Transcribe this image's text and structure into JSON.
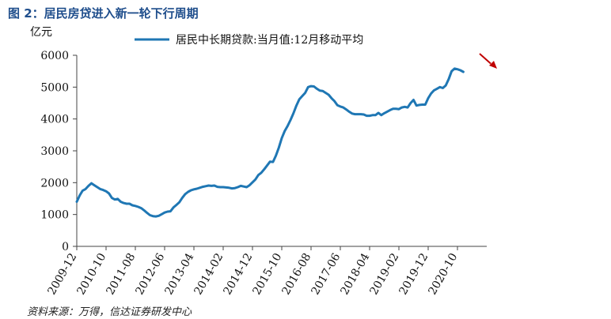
{
  "figure_title": "图 2：居民房贷进入新一轮下行周期",
  "source_note": "资料来源：万得，信达证券研发中心",
  "chart_data": {
    "type": "line",
    "ylabel": "亿元",
    "ylim": [
      0,
      6000
    ],
    "yticks": [
      0,
      1000,
      2000,
      3000,
      4000,
      5000,
      6000
    ],
    "xlim": [
      "2009-12",
      "2021-08"
    ],
    "xticks": [
      "2009-12",
      "2010-10",
      "2011-08",
      "2012-06",
      "2013-04",
      "2014-02",
      "2014-12",
      "2015-10",
      "2016-08",
      "2017-06",
      "2018-04",
      "2019-02",
      "2019-12",
      "2020-10"
    ],
    "legend_position": "top",
    "series": [
      {
        "name": "居民中长期贷款:当月值:12月移动平均",
        "color": "#1f77b4",
        "points": [
          [
            "2009-12",
            1400
          ],
          [
            "2010-01",
            1600
          ],
          [
            "2010-02",
            1750
          ],
          [
            "2010-03",
            1800
          ],
          [
            "2010-04",
            1900
          ],
          [
            "2010-05",
            1980
          ],
          [
            "2010-06",
            1920
          ],
          [
            "2010-07",
            1860
          ],
          [
            "2010-08",
            1800
          ],
          [
            "2010-09",
            1770
          ],
          [
            "2010-10",
            1730
          ],
          [
            "2010-11",
            1660
          ],
          [
            "2010-12",
            1520
          ],
          [
            "2011-01",
            1470
          ],
          [
            "2011-02",
            1490
          ],
          [
            "2011-03",
            1400
          ],
          [
            "2011-04",
            1360
          ],
          [
            "2011-05",
            1340
          ],
          [
            "2011-06",
            1340
          ],
          [
            "2011-07",
            1290
          ],
          [
            "2011-08",
            1270
          ],
          [
            "2011-09",
            1240
          ],
          [
            "2011-10",
            1200
          ],
          [
            "2011-11",
            1130
          ],
          [
            "2011-12",
            1050
          ],
          [
            "2012-01",
            980
          ],
          [
            "2012-02",
            950
          ],
          [
            "2012-03",
            940
          ],
          [
            "2012-04",
            960
          ],
          [
            "2012-05",
            1010
          ],
          [
            "2012-06",
            1060
          ],
          [
            "2012-07",
            1090
          ],
          [
            "2012-08",
            1100
          ],
          [
            "2012-09",
            1220
          ],
          [
            "2012-10",
            1300
          ],
          [
            "2012-11",
            1380
          ],
          [
            "2012-12",
            1520
          ],
          [
            "2013-01",
            1640
          ],
          [
            "2013-02",
            1710
          ],
          [
            "2013-03",
            1760
          ],
          [
            "2013-04",
            1790
          ],
          [
            "2013-05",
            1810
          ],
          [
            "2013-06",
            1840
          ],
          [
            "2013-07",
            1870
          ],
          [
            "2013-08",
            1890
          ],
          [
            "2013-09",
            1910
          ],
          [
            "2013-10",
            1900
          ],
          [
            "2013-11",
            1910
          ],
          [
            "2013-12",
            1870
          ],
          [
            "2014-01",
            1860
          ],
          [
            "2014-02",
            1860
          ],
          [
            "2014-03",
            1850
          ],
          [
            "2014-04",
            1840
          ],
          [
            "2014-05",
            1820
          ],
          [
            "2014-06",
            1830
          ],
          [
            "2014-07",
            1860
          ],
          [
            "2014-08",
            1900
          ],
          [
            "2014-09",
            1880
          ],
          [
            "2014-10",
            1860
          ],
          [
            "2014-11",
            1920
          ],
          [
            "2014-12",
            2010
          ],
          [
            "2015-01",
            2100
          ],
          [
            "2015-02",
            2240
          ],
          [
            "2015-03",
            2310
          ],
          [
            "2015-04",
            2420
          ],
          [
            "2015-05",
            2540
          ],
          [
            "2015-06",
            2660
          ],
          [
            "2015-07",
            2650
          ],
          [
            "2015-08",
            2850
          ],
          [
            "2015-09",
            3100
          ],
          [
            "2015-10",
            3400
          ],
          [
            "2015-11",
            3620
          ],
          [
            "2015-12",
            3780
          ],
          [
            "2016-01",
            3970
          ],
          [
            "2016-02",
            4180
          ],
          [
            "2016-03",
            4420
          ],
          [
            "2016-04",
            4620
          ],
          [
            "2016-05",
            4720
          ],
          [
            "2016-06",
            4820
          ],
          [
            "2016-07",
            5000
          ],
          [
            "2016-08",
            5030
          ],
          [
            "2016-09",
            5020
          ],
          [
            "2016-10",
            4950
          ],
          [
            "2016-11",
            4890
          ],
          [
            "2016-12",
            4880
          ],
          [
            "2017-01",
            4820
          ],
          [
            "2017-02",
            4760
          ],
          [
            "2017-03",
            4650
          ],
          [
            "2017-04",
            4560
          ],
          [
            "2017-05",
            4430
          ],
          [
            "2017-06",
            4390
          ],
          [
            "2017-07",
            4360
          ],
          [
            "2017-08",
            4300
          ],
          [
            "2017-09",
            4230
          ],
          [
            "2017-10",
            4170
          ],
          [
            "2017-11",
            4150
          ],
          [
            "2017-12",
            4150
          ],
          [
            "2018-01",
            4150
          ],
          [
            "2018-02",
            4140
          ],
          [
            "2018-03",
            4100
          ],
          [
            "2018-04",
            4100
          ],
          [
            "2018-05",
            4120
          ],
          [
            "2018-06",
            4120
          ],
          [
            "2018-07",
            4190
          ],
          [
            "2018-08",
            4120
          ],
          [
            "2018-09",
            4180
          ],
          [
            "2018-10",
            4230
          ],
          [
            "2018-11",
            4280
          ],
          [
            "2018-12",
            4320
          ],
          [
            "2019-01",
            4320
          ],
          [
            "2019-02",
            4310
          ],
          [
            "2019-03",
            4360
          ],
          [
            "2019-04",
            4380
          ],
          [
            "2019-05",
            4360
          ],
          [
            "2019-06",
            4500
          ],
          [
            "2019-07",
            4600
          ],
          [
            "2019-08",
            4420
          ],
          [
            "2019-09",
            4440
          ],
          [
            "2019-10",
            4450
          ],
          [
            "2019-11",
            4450
          ],
          [
            "2019-12",
            4650
          ],
          [
            "2020-01",
            4800
          ],
          [
            "2020-02",
            4900
          ],
          [
            "2020-03",
            4950
          ],
          [
            "2020-04",
            5000
          ],
          [
            "2020-05",
            4970
          ],
          [
            "2020-06",
            5050
          ],
          [
            "2020-07",
            5250
          ],
          [
            "2020-08",
            5500
          ],
          [
            "2020-09",
            5580
          ],
          [
            "2020-10",
            5560
          ],
          [
            "2020-11",
            5530
          ],
          [
            "2020-12",
            5480
          ]
        ]
      }
    ],
    "annotations": [
      {
        "type": "arrow",
        "direction": "down-right",
        "color": "#c00000"
      }
    ]
  }
}
